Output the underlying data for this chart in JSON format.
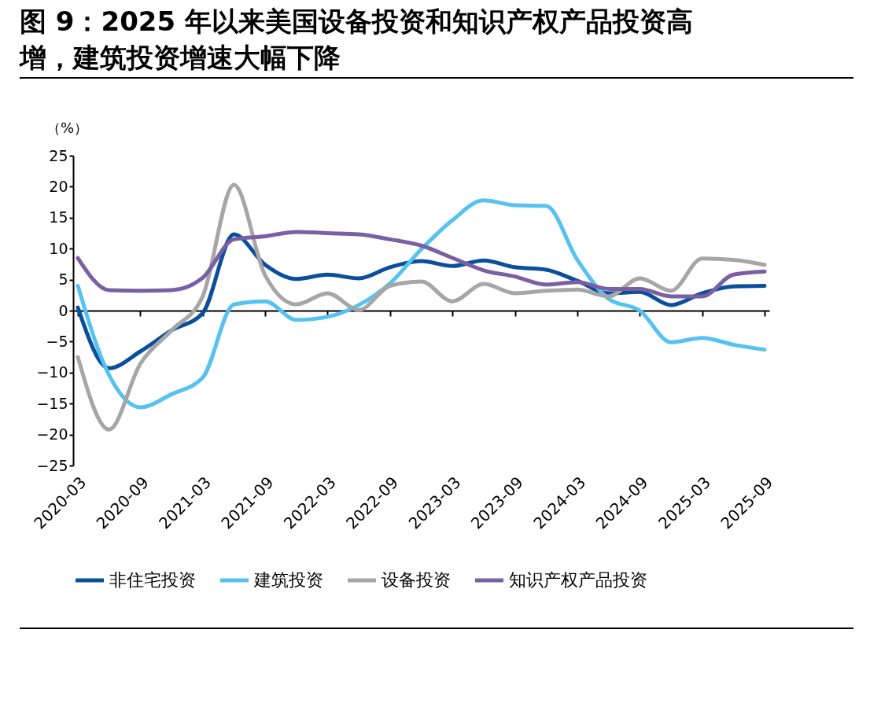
{
  "chart_data": {
    "type": "line",
    "title": "图 9：2025 年以来美国设备投资和知识产权产品投资高增，建筑投资增速大幅下降",
    "ylabel": "（%）",
    "categories": [
      "2020-03",
      null,
      "2020-09",
      null,
      "2021-03",
      null,
      "2021-09",
      null,
      "2022-03",
      null,
      "2022-09",
      null,
      "2023-03",
      null,
      "2023-09",
      null,
      "2024-03",
      null,
      "2024-09",
      null,
      "2025-03",
      null,
      "2025-09"
    ],
    "ylim": [
      -25,
      25
    ],
    "yticks": [
      -25,
      -20,
      -15,
      -10,
      -5,
      0,
      5,
      10,
      15,
      20,
      25
    ],
    "legend": "bottom",
    "series": [
      {
        "name": "非住宅投资",
        "color": "#0b4f9c",
        "values": [
          0.5,
          -9.3,
          -6.6,
          -3.2,
          -0.4,
          12.3,
          7.4,
          5.1,
          5.8,
          5.2,
          7.0,
          8.0,
          7.2,
          8.1,
          7.0,
          6.6,
          4.8,
          2.8,
          3.0,
          0.9,
          2.8,
          3.9,
          4.0
        ]
      },
      {
        "name": "建筑投资",
        "color": "#56c2f0",
        "values": [
          4.0,
          -10.4,
          -15.6,
          -13.5,
          -10.8,
          1.0,
          1.5,
          -1.5,
          -1.0,
          0.9,
          4.4,
          9.9,
          14.6,
          17.8,
          17.0,
          16.9,
          8.2,
          1.9,
          0,
          -5.1,
          -4.4,
          -5.5,
          -6.3
        ]
      },
      {
        "name": "设备投资",
        "color": "#a6a6a6",
        "values": [
          -7.5,
          -19.2,
          -8.6,
          -3.2,
          2.3,
          20.3,
          5.7,
          1.0,
          2.8,
          0.1,
          4.0,
          4.7,
          1.5,
          4.3,
          2.8,
          3.2,
          3.4,
          2.3,
          5.2,
          3.2,
          8.4,
          8.2,
          7.4
        ]
      },
      {
        "name": "知识产权产品投资",
        "color": "#7b5fa3",
        "values": [
          8.5,
          3.3,
          3.2,
          3.3,
          5.3,
          11.5,
          12.0,
          12.7,
          12.5,
          12.3,
          11.5,
          10.5,
          8.5,
          6.5,
          5.5,
          4.2,
          4.6,
          3.5,
          3.5,
          2.3,
          2.3,
          5.8,
          6.3
        ]
      }
    ]
  }
}
